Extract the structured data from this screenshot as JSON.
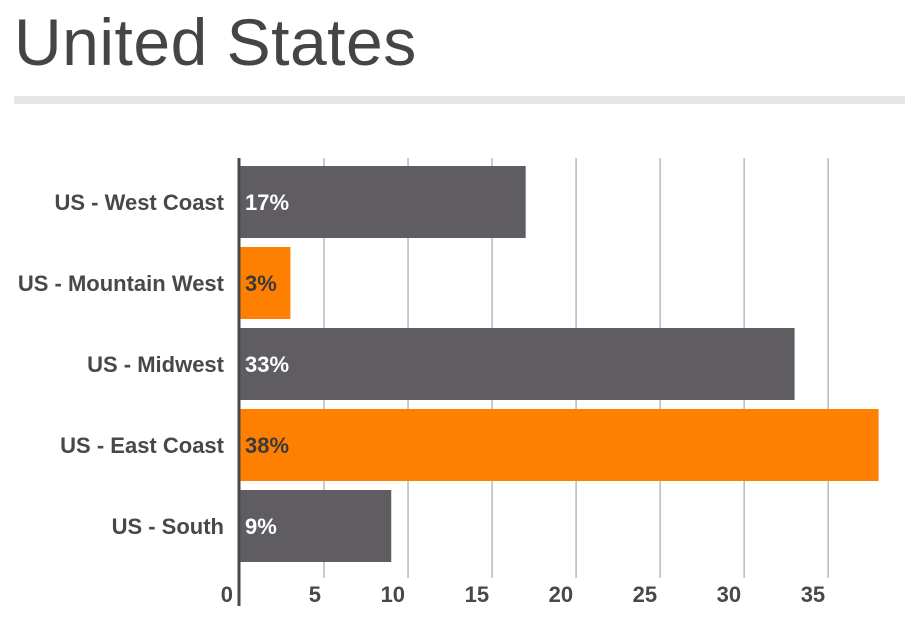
{
  "page": {
    "title": "United States"
  },
  "chart_data": {
    "type": "bar",
    "orientation": "horizontal",
    "categories": [
      "US - West Coast",
      "US - Mountain West",
      "US - Midwest",
      "US - East Coast",
      "US - South"
    ],
    "values": [
      17,
      3,
      33,
      38,
      9
    ],
    "data_labels": [
      "17%",
      "3%",
      "33%",
      "38%",
      "9%"
    ],
    "bar_colors": [
      "#5f5d62",
      "#ff8000",
      "#5f5d62",
      "#ff8000",
      "#5f5d62"
    ],
    "data_label_colors": [
      "#ffffff",
      "#3a3a3c",
      "#ffffff",
      "#3a3a3c",
      "#ffffff"
    ],
    "x_ticks": [
      0,
      5,
      10,
      15,
      20,
      25,
      30,
      35
    ],
    "xlim": [
      0,
      38.5
    ],
    "grid": true,
    "legend": "none",
    "title": "",
    "xlabel": "",
    "ylabel": ""
  }
}
